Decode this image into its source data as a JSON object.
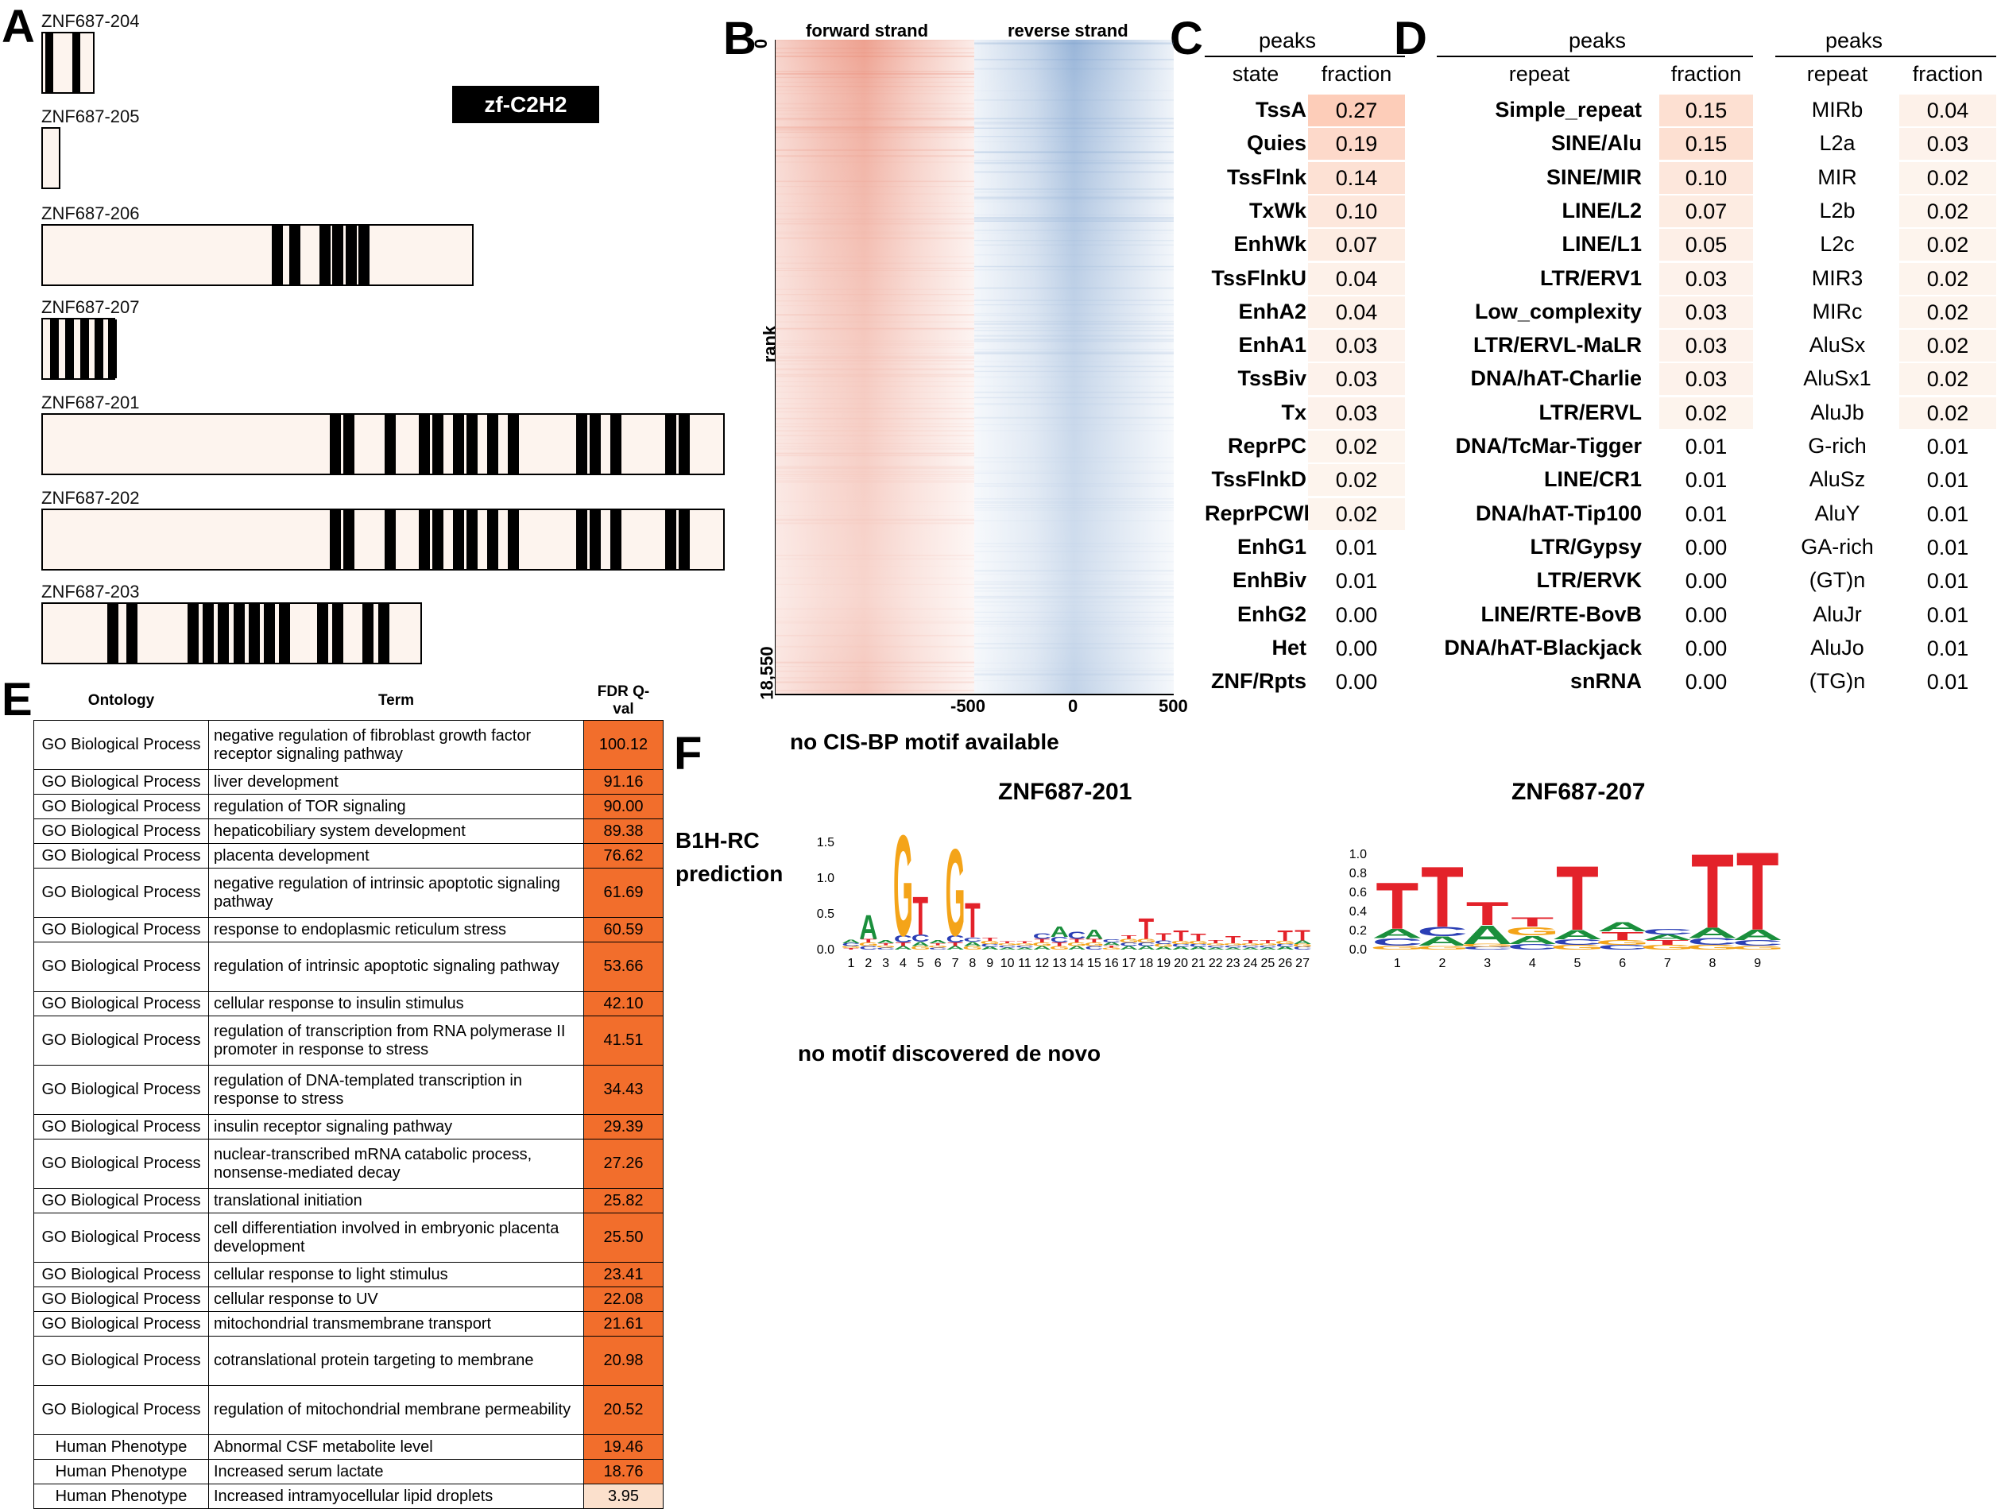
{
  "panels": {
    "A": "A",
    "B": "B",
    "C": "C",
    "D": "D",
    "E": "E",
    "F": "F"
  },
  "isoforms": [
    {
      "name": "ZNF687-204",
      "length_frac": 0.078,
      "fingers": [
        0.05,
        0.55
      ]
    },
    {
      "name": "ZNF687-205",
      "length_frac": 0.028,
      "fingers": []
    },
    {
      "name": "ZNF687-206",
      "length_frac": 0.632,
      "fingers": [
        0.53,
        0.57,
        0.64,
        0.67,
        0.7,
        0.73
      ]
    },
    {
      "name": "ZNF687-207",
      "length_frac": 0.108,
      "fingers": [
        0.1,
        0.3,
        0.5,
        0.7,
        0.88
      ]
    },
    {
      "name": "ZNF687-201",
      "length_frac": 1.0,
      "fingers": [
        0.42,
        0.44,
        0.5,
        0.55,
        0.57,
        0.6,
        0.62,
        0.65,
        0.68,
        0.78,
        0.8,
        0.83,
        0.91,
        0.93
      ]
    },
    {
      "name": "ZNF687-202",
      "length_frac": 1.0,
      "fingers": [
        0.42,
        0.44,
        0.5,
        0.55,
        0.57,
        0.6,
        0.62,
        0.65,
        0.68,
        0.78,
        0.8,
        0.83,
        0.91,
        0.93
      ]
    },
    {
      "name": "ZNF687-203",
      "length_frac": 0.557,
      "fingers": [
        0.17,
        0.22,
        0.38,
        0.42,
        0.46,
        0.5,
        0.54,
        0.58,
        0.62,
        0.72,
        0.76,
        0.84,
        0.88
      ]
    }
  ],
  "domain_legend": "zf-C2H2",
  "heatmap": {
    "forward_label": "forward strand",
    "reverse_label": "reverse strand",
    "y_top": "0",
    "y_axis": "rank",
    "y_bottom": "18,550",
    "x_ticks": [
      "-500",
      "0",
      "500"
    ],
    "forward_color": "#e8826b",
    "reverse_color": "#6c95c8"
  },
  "table_c": {
    "title": "peaks",
    "col1": "state",
    "col2": "fraction",
    "rows": [
      {
        "label": "TssA",
        "value": "0.27"
      },
      {
        "label": "Quies",
        "value": "0.19"
      },
      {
        "label": "TssFlnk",
        "value": "0.14"
      },
      {
        "label": "TxWk",
        "value": "0.10"
      },
      {
        "label": "EnhWk",
        "value": "0.07"
      },
      {
        "label": "TssFlnkU",
        "value": "0.04"
      },
      {
        "label": "EnhA2",
        "value": "0.04"
      },
      {
        "label": "EnhA1",
        "value": "0.03"
      },
      {
        "label": "TssBiv",
        "value": "0.03"
      },
      {
        "label": "Tx",
        "value": "0.03"
      },
      {
        "label": "ReprPC",
        "value": "0.02"
      },
      {
        "label": "TssFlnkD",
        "value": "0.02"
      },
      {
        "label": "ReprPCWk",
        "value": "0.02"
      },
      {
        "label": "EnhG1",
        "value": "0.01"
      },
      {
        "label": "EnhBiv",
        "value": "0.01"
      },
      {
        "label": "EnhG2",
        "value": "0.00"
      },
      {
        "label": "Het",
        "value": "0.00"
      },
      {
        "label": "ZNF/Rpts",
        "value": "0.00"
      }
    ]
  },
  "table_d1": {
    "title": "peaks",
    "col1": "repeat",
    "col2": "fraction",
    "rows": [
      {
        "label": "Simple_repeat",
        "value": "0.15"
      },
      {
        "label": "SINE/Alu",
        "value": "0.15"
      },
      {
        "label": "SINE/MIR",
        "value": "0.10"
      },
      {
        "label": "LINE/L2",
        "value": "0.07"
      },
      {
        "label": "LINE/L1",
        "value": "0.05"
      },
      {
        "label": "LTR/ERV1",
        "value": "0.03"
      },
      {
        "label": "Low_complexity",
        "value": "0.03"
      },
      {
        "label": "LTR/ERVL-MaLR",
        "value": "0.03"
      },
      {
        "label": "DNA/hAT-Charlie",
        "value": "0.03"
      },
      {
        "label": "LTR/ERVL",
        "value": "0.02"
      },
      {
        "label": "DNA/TcMar-Tigger",
        "value": "0.01"
      },
      {
        "label": "LINE/CR1",
        "value": "0.01"
      },
      {
        "label": "DNA/hAT-Tip100",
        "value": "0.01"
      },
      {
        "label": "LTR/Gypsy",
        "value": "0.00"
      },
      {
        "label": "LTR/ERVK",
        "value": "0.00"
      },
      {
        "label": "LINE/RTE-BovB",
        "value": "0.00"
      },
      {
        "label": "DNA/hAT-Blackjack",
        "value": "0.00"
      },
      {
        "label": "snRNA",
        "value": "0.00"
      }
    ]
  },
  "table_d2": {
    "title": "peaks",
    "col1": "repeat",
    "col2": "fraction",
    "rows": [
      {
        "label": "MIRb",
        "value": "0.04"
      },
      {
        "label": "L2a",
        "value": "0.03"
      },
      {
        "label": "MIR",
        "value": "0.02"
      },
      {
        "label": "L2b",
        "value": "0.02"
      },
      {
        "label": "L2c",
        "value": "0.02"
      },
      {
        "label": "MIR3",
        "value": "0.02"
      },
      {
        "label": "MIRc",
        "value": "0.02"
      },
      {
        "label": "AluSx",
        "value": "0.02"
      },
      {
        "label": "AluSx1",
        "value": "0.02"
      },
      {
        "label": "AluJb",
        "value": "0.02"
      },
      {
        "label": "G-rich",
        "value": "0.01"
      },
      {
        "label": "AluSz",
        "value": "0.01"
      },
      {
        "label": "AluY",
        "value": "0.01"
      },
      {
        "label": "GA-rich",
        "value": "0.01"
      },
      {
        "label": "(GT)n",
        "value": "0.01"
      },
      {
        "label": "AluJr",
        "value": "0.01"
      },
      {
        "label": "AluJo",
        "value": "0.01"
      },
      {
        "label": "(TG)n",
        "value": "0.01"
      }
    ]
  },
  "go": {
    "headers": {
      "ontology": "Ontology",
      "term": "Term",
      "fdr": "FDR Q-val"
    },
    "rows": [
      {
        "ontology": "GO Biological Process",
        "term": "negative regulation of fibroblast growth factor receptor signaling pathway",
        "fdr": "100.12"
      },
      {
        "ontology": "GO Biological Process",
        "term": "liver development",
        "fdr": "91.16"
      },
      {
        "ontology": "GO Biological Process",
        "term": "regulation of TOR signaling",
        "fdr": "90.00"
      },
      {
        "ontology": "GO Biological Process",
        "term": "hepaticobiliary system development",
        "fdr": "89.38"
      },
      {
        "ontology": "GO Biological Process",
        "term": "placenta development",
        "fdr": "76.62"
      },
      {
        "ontology": "GO Biological Process",
        "term": "negative regulation of intrinsic apoptotic signaling pathway",
        "fdr": "61.69"
      },
      {
        "ontology": "GO Biological Process",
        "term": "response to endoplasmic reticulum stress",
        "fdr": "60.59"
      },
      {
        "ontology": "GO Biological Process",
        "term": "regulation of intrinsic apoptotic signaling pathway",
        "fdr": "53.66"
      },
      {
        "ontology": "GO Biological Process",
        "term": "cellular response to insulin stimulus",
        "fdr": "42.10"
      },
      {
        "ontology": "GO Biological Process",
        "term": "regulation of transcription from RNA polymerase II promoter in response to stress",
        "fdr": "41.51"
      },
      {
        "ontology": "GO Biological Process",
        "term": "regulation of DNA-templated transcription in response to stress",
        "fdr": "34.43"
      },
      {
        "ontology": "GO Biological Process",
        "term": "insulin receptor signaling pathway",
        "fdr": "29.39"
      },
      {
        "ontology": "GO Biological Process",
        "term": "nuclear-transcribed mRNA catabolic process, nonsense-mediated decay",
        "fdr": "27.26"
      },
      {
        "ontology": "GO Biological Process",
        "term": "translational initiation",
        "fdr": "25.82"
      },
      {
        "ontology": "GO Biological Process",
        "term": "cell differentiation involved in embryonic placenta development",
        "fdr": "25.50"
      },
      {
        "ontology": "GO Biological Process",
        "term": "cellular response to light stimulus",
        "fdr": "23.41"
      },
      {
        "ontology": "GO Biological Process",
        "term": "cellular response to UV",
        "fdr": "22.08"
      },
      {
        "ontology": "GO Biological Process",
        "term": "mitochondrial transmembrane transport",
        "fdr": "21.61"
      },
      {
        "ontology": "GO Biological Process",
        "term": "cotranslational protein targeting to membrane",
        "fdr": "20.98"
      },
      {
        "ontology": "GO Biological Process",
        "term": "regulation of mitochondrial membrane permeability",
        "fdr": "20.52"
      },
      {
        "ontology": "Human Phenotype",
        "term": "Abnormal CSF metabolite level",
        "fdr": "19.46"
      },
      {
        "ontology": "Human Phenotype",
        "term": "Increased serum lactate",
        "fdr": "18.76"
      },
      {
        "ontology": "Human Phenotype",
        "term": "Increased intramyocellular lipid droplets",
        "fdr": "3.95"
      }
    ],
    "high_color": "#f26e2c",
    "low_color": "#fbe0cc"
  },
  "texts": {
    "no_cisbp": "no CIS-BP motif available",
    "b1h": "B1H-RC",
    "prediction": "prediction",
    "no_denovo": "no motif discovered de novo"
  },
  "logos": [
    {
      "title": "ZNF687-201",
      "yticks": [
        "0.0",
        "0.5",
        "1.0",
        "1.5"
      ],
      "ymax": 1.5,
      "positions": [
        "1",
        "2",
        "3",
        "4",
        "5",
        "6",
        "7",
        "8",
        "9",
        "10",
        "11",
        "12",
        "13",
        "14",
        "15",
        "16",
        "17",
        "18",
        "19",
        "20",
        "21",
        "22",
        "23",
        "24",
        "25",
        "26",
        "27"
      ],
      "heights": [
        [
          0.05,
          0.04,
          0.03,
          0.02
        ],
        [
          0.35,
          0.05,
          0.05,
          0.05
        ],
        [
          0.04,
          0.03,
          0.03,
          0.03
        ],
        [
          0.05,
          0.1,
          1.45,
          0.05
        ],
        [
          0.06,
          0.1,
          0.05,
          0.55
        ],
        [
          0.04,
          0.03,
          0.03,
          0.03
        ],
        [
          0.05,
          0.1,
          1.25,
          0.05
        ],
        [
          0.06,
          0.06,
          0.05,
          0.5
        ],
        [
          0.04,
          0.04,
          0.04,
          0.04
        ],
        [
          0.03,
          0.03,
          0.03,
          0.03
        ],
        [
          0.03,
          0.03,
          0.03,
          0.03
        ],
        [
          0.05,
          0.08,
          0.05,
          0.05
        ],
        [
          0.15,
          0.08,
          0.05,
          0.05
        ],
        [
          0.05,
          0.1,
          0.05,
          0.05
        ],
        [
          0.13,
          0.05,
          0.05,
          0.05
        ],
        [
          0.04,
          0.04,
          0.03,
          0.03
        ],
        [
          0.05,
          0.05,
          0.05,
          0.05
        ],
        [
          0.05,
          0.05,
          0.05,
          0.3
        ],
        [
          0.04,
          0.05,
          0.04,
          0.1
        ],
        [
          0.04,
          0.04,
          0.04,
          0.15
        ],
        [
          0.04,
          0.04,
          0.04,
          0.1
        ],
        [
          0.03,
          0.03,
          0.03,
          0.04
        ],
        [
          0.03,
          0.03,
          0.03,
          0.1
        ],
        [
          0.03,
          0.03,
          0.03,
          0.04
        ],
        [
          0.03,
          0.03,
          0.03,
          0.04
        ],
        [
          0.04,
          0.04,
          0.04,
          0.15
        ],
        [
          0.05,
          0.04,
          0.04,
          0.15
        ]
      ]
    },
    {
      "title": "ZNF687-207",
      "yticks": [
        "0.0",
        "0.2",
        "0.4",
        "0.6",
        "0.8",
        "1.0"
      ],
      "ymax": 1.0,
      "positions": [
        "1",
        "2",
        "3",
        "4",
        "5",
        "6",
        "7",
        "8",
        "9"
      ],
      "heights": [
        [
          0.1,
          0.08,
          0.04,
          0.5
        ],
        [
          0.1,
          0.1,
          0.04,
          0.65
        ],
        [
          0.2,
          0.03,
          0.03,
          0.25
        ],
        [
          0.09,
          0.06,
          0.09,
          0.1
        ],
        [
          0.1,
          0.06,
          0.05,
          0.69
        ],
        [
          0.1,
          0.05,
          0.05,
          0.09
        ],
        [
          0.06,
          0.06,
          0.05,
          0.05
        ],
        [
          0.11,
          0.07,
          0.05,
          0.8
        ],
        [
          0.11,
          0.06,
          0.04,
          0.84
        ]
      ]
    }
  ],
  "nucleotide_colors": {
    "A": "#1a8f3c",
    "C": "#2b3fb5",
    "G": "#f4a419",
    "T": "#e3222a"
  }
}
